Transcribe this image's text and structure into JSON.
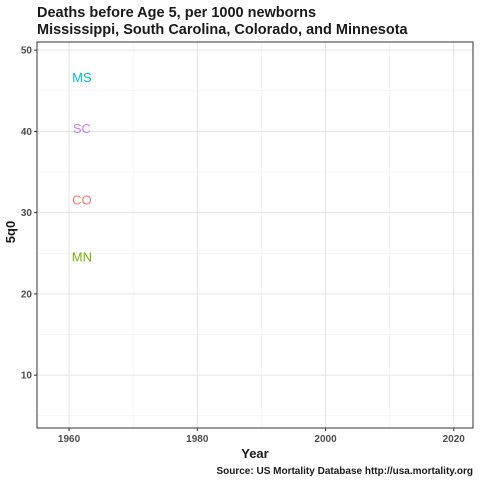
{
  "chart_data": {
    "type": "scatter",
    "title": "Deaths before Age 5, per 1000 newborns",
    "subtitle": "Mississippi, South Carolina, Colorado, and Minnesota",
    "xlabel": "Year",
    "ylabel": "5q0",
    "caption": "Source: US Mortality Database http://usa.mortality.org",
    "xlim": [
      1955,
      2023
    ],
    "ylim": [
      3.5,
      51
    ],
    "x_ticks": [
      1960,
      1980,
      2000,
      2020
    ],
    "y_ticks": [
      10,
      20,
      30,
      40,
      50
    ],
    "grid": true,
    "labels": [
      {
        "text": "MS",
        "x": 1962,
        "y": 46.7,
        "color": "#00BFC4"
      },
      {
        "text": "SC",
        "x": 1962,
        "y": 40.4,
        "color": "#C77CFF"
      },
      {
        "text": "CO",
        "x": 1962,
        "y": 31.6,
        "color": "#F8766D"
      },
      {
        "text": "MN",
        "x": 1962,
        "y": 24.6,
        "color": "#7CAE00"
      }
    ]
  }
}
